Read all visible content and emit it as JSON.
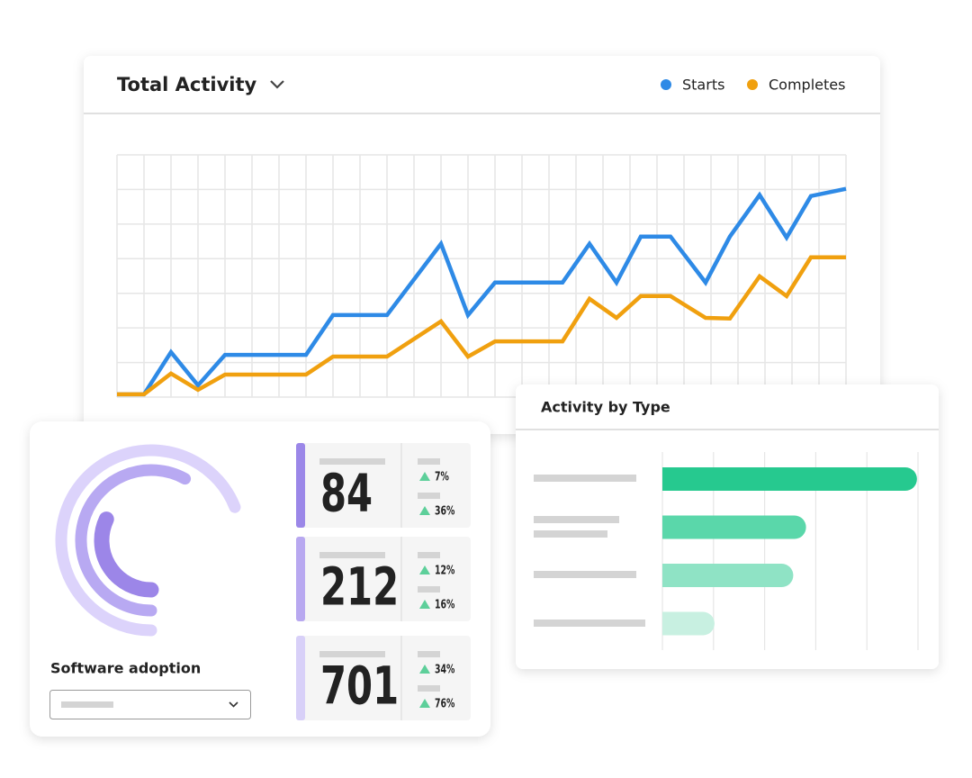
{
  "chart_data": [
    {
      "type": "line",
      "title": "Total Activity",
      "x": [
        0,
        1,
        2,
        3,
        4,
        7,
        8,
        10,
        12,
        13,
        14,
        16.5,
        17.5,
        18.5,
        19.4,
        20.5,
        21.8,
        22.7,
        23.8,
        24.8,
        25.7,
        27
      ],
      "series": [
        {
          "name": "Starts",
          "color": "#2e8ae6",
          "values": [
            0.08,
            0.08,
            1.3,
            0.34,
            1.22,
            1.22,
            2.37,
            2.37,
            4.43,
            2.37,
            3.31,
            3.31,
            4.43,
            3.31,
            4.64,
            4.64,
            3.31,
            4.64,
            5.84,
            4.61,
            5.81,
            6.02
          ]
        },
        {
          "name": "Completes",
          "color": "#f0a00f",
          "values": [
            0.08,
            0.08,
            0.68,
            0.21,
            0.65,
            0.65,
            1.17,
            1.17,
            2.19,
            1.17,
            1.61,
            1.61,
            2.84,
            2.29,
            2.92,
            2.92,
            2.29,
            2.27,
            3.49,
            2.92,
            4.04,
            4.04
          ]
        }
      ],
      "xlim": [
        0,
        27
      ],
      "ylim": [
        0,
        7
      ],
      "xticks": [
        0,
        1,
        2,
        3,
        4,
        5,
        6,
        7,
        8,
        9,
        10,
        11,
        12,
        13,
        14,
        15,
        16,
        17,
        18,
        19,
        20,
        21,
        22,
        23,
        24,
        25,
        26,
        27
      ],
      "yticks": [
        0,
        1,
        2,
        3,
        4,
        5,
        6,
        7
      ],
      "grid": true,
      "legend": "top-right"
    },
    {
      "type": "barh",
      "title": "Activity by Type",
      "values": [
        4.98,
        2.81,
        2.56,
        1.02
      ],
      "colors": [
        "#26c98f",
        "#5ad7aa",
        "#8fe3c5",
        "#c8f0e1"
      ],
      "xlim": [
        0,
        5
      ],
      "xticks": [
        0,
        1,
        2,
        3,
        4,
        5
      ],
      "grid": true
    },
    {
      "type": "radial",
      "title": "Software adoption",
      "values": [
        69,
        58,
        32
      ],
      "colors": [
        "#dcd3fb",
        "#b8a9f2",
        "#9c86e8"
      ],
      "ylim": [
        0,
        100
      ]
    }
  ],
  "kpis": [
    {
      "value": "84",
      "changes": [
        "7%",
        "36%"
      ],
      "color": "#9b87e8"
    },
    {
      "value": "212",
      "changes": [
        "12%",
        "16%"
      ],
      "color": "#b8a8f0"
    },
    {
      "value": "701",
      "changes": [
        "34%",
        "76%"
      ],
      "color": "#d8d0f8"
    }
  ]
}
